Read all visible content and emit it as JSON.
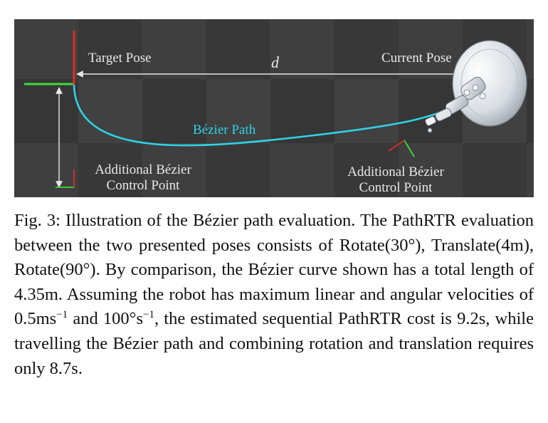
{
  "figure": {
    "labels": {
      "target_pose": "Target Pose",
      "current_pose": "Current Pose",
      "distance": "d",
      "bezier_path": "Bézier Path",
      "control_point_left_line1": "Additional Bézier",
      "control_point_left_line2": "Control Point",
      "control_point_right_line1": "Additional Bézier",
      "control_point_right_line2": "Control Point"
    },
    "colors": {
      "path": "#2fd3e6",
      "x_axis": "#3ddc3d",
      "y_axis": "#e02a2a",
      "background": "#3b3b3b"
    }
  },
  "caption": {
    "p1": "Fig. 3: Illustration of the Bézier path evaluation. The PathRTR evaluation between the two presented poses consists of Rotate(30°), Translate(4m), Rotate(90°). By comparison, the Bézier curve shown has a total length of 4.35m. Assuming the robot has maximum linear and angular velocities of 0.5ms",
    "sup1": "−1",
    "p2": " and 100°s",
    "sup2": "−1",
    "p3": ", the estimated sequential PathRTR cost is 9.2s, while travelling the Bézier path and combining rotation and translation requires only 8.7s."
  }
}
